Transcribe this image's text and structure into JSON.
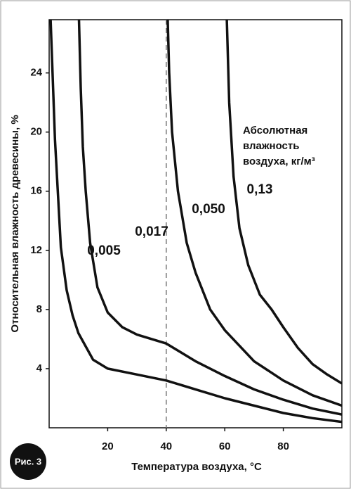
{
  "chart_data": {
    "type": "line",
    "figure_label": "Рис. 3",
    "x_label": "Температура воздуха, °С",
    "y_label": "Относительная влажность древесины, %",
    "annotation_lines": [
      "Абсолютная",
      "влажность",
      "воздуха, кг/м³"
    ],
    "xlim": [
      0,
      100
    ],
    "ylim": [
      0,
      27.6
    ],
    "xticks": [
      20,
      40,
      60,
      80
    ],
    "yticks": [
      4,
      8,
      12,
      16,
      20,
      24
    ],
    "reference_x": 40,
    "series": [
      {
        "name": "0,005",
        "color": "#111111",
        "x": [
          0.5,
          2,
          4,
          6,
          8,
          10,
          15,
          20,
          30,
          40,
          50,
          60,
          70,
          80,
          90,
          100
        ],
        "values": [
          27.6,
          19.5,
          12.2,
          9.3,
          7.6,
          6.4,
          4.6,
          4.0,
          3.6,
          3.2,
          2.6,
          2.0,
          1.5,
          1.0,
          0.65,
          0.4
        ]
      },
      {
        "name": "0,017",
        "color": "#111111",
        "x": [
          10.2,
          10.8,
          11.5,
          12.5,
          14,
          16.5,
          20,
          25,
          30,
          40,
          50,
          60,
          70,
          80,
          90,
          100
        ],
        "values": [
          27.6,
          23,
          19,
          16,
          12.5,
          9.5,
          7.8,
          6.8,
          6.3,
          5.7,
          4.5,
          3.5,
          2.6,
          1.9,
          1.3,
          0.9
        ]
      },
      {
        "name": "0,050",
        "color": "#111111",
        "x": [
          40.5,
          41,
          42,
          44,
          47,
          50,
          55,
          60,
          70,
          80,
          90,
          100
        ],
        "values": [
          27.6,
          24,
          20,
          16,
          12.5,
          10.5,
          8,
          6.6,
          4.5,
          3.2,
          2.2,
          1.5
        ]
      },
      {
        "name": "0,13",
        "color": "#111111",
        "x": [
          60.7,
          61.5,
          63,
          65,
          68,
          72,
          76,
          80,
          85,
          90,
          95,
          100
        ],
        "values": [
          27.6,
          22,
          17,
          13.5,
          11,
          9,
          8,
          6.8,
          5.4,
          4.3,
          3.6,
          3.0
        ]
      }
    ]
  }
}
